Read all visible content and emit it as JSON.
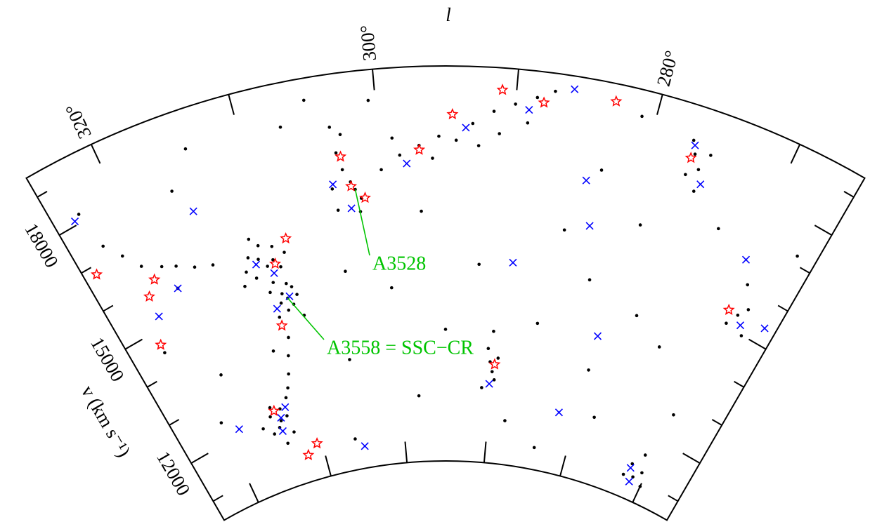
{
  "chart_data": {
    "type": "wedge",
    "xlabel": "l",
    "ylabel": "v (km s⁻¹)",
    "xlim": [
      325,
      265
    ],
    "ylim": [
      10500,
      19500
    ],
    "xticks": [
      {
        "value": 320,
        "label": "320°"
      },
      {
        "value": 300,
        "label": "300°"
      },
      {
        "value": 280,
        "label": "280°"
      }
    ],
    "xminor_ticks": [
      310,
      290,
      270
    ],
    "yticks": [
      12000,
      15000,
      18000
    ],
    "yminor_ticks": [
      11000,
      13000,
      14000,
      16000,
      17000,
      19000
    ],
    "annotations": [
      {
        "text": "A3528",
        "x": 302.2,
        "y": 16815
      },
      {
        "text": "A3558 = SSC−CR",
        "x": 309.6,
        "y": 14670
      }
    ],
    "series": [
      {
        "marker": "dot",
        "color": "#000000",
        "x": [
          309.6,
          309.2,
          310,
          309.8,
          310.3,
          309,
          310.8,
          308.7,
          309.4,
          310.5,
          311,
          308.5,
          310.6,
          311.2,
          310,
          311.8,
          312,
          309.5,
          310.9,
          311.5,
          309.8,
          312.5,
          313,
          308.9,
          310.5,
          311,
          311.5,
          312,
          312.3,
          313.8,
          313.5,
          314.2,
          313,
          314.5,
          315,
          312.8,
          313.9,
          314.8,
          316,
          312.5,
          302.2,
          302.5,
          301.8,
          303,
          303.3,
          302.8,
          303.5,
          304,
          303.8,
          302,
          300,
          298.5,
          297,
          295.5,
          294.2,
          293,
          291.5,
          290,
          288.5,
          287.3,
          289,
          291,
          296,
          299,
          292.5,
          317.9,
          316.5,
          315,
          319,
          320.5,
          318.5,
          321.5,
          322.5,
          290,
          290.3,
          289.7,
          290.6,
          289.5,
          291,
          290.2,
          276.6,
          277,
          276,
          276.8,
          275.5,
          275.8,
          271.3,
          272,
          270.5,
          271,
          272.5,
          270,
          268.6,
          268,
          269.2,
          267.5,
          269,
          285,
          282,
          280,
          278,
          286,
          283,
          279,
          274,
          292,
          295,
          298,
          300,
          305,
          306,
          304,
          297,
          288,
          284,
          318,
          320,
          322,
          323,
          316,
          314,
          307,
          305,
          300.5,
          281,
          277,
          273,
          266.5,
          270
        ],
        "y": [
          14670,
          14500,
          14800,
          14400,
          14600,
          14900,
          14300,
          14700,
          15000,
          15100,
          14900,
          14200,
          15490,
          15700,
          15600,
          15300,
          15800,
          15400,
          16000,
          16200,
          15900,
          15500,
          15200,
          15700,
          13800,
          13400,
          13000,
          12700,
          13600,
          12035,
          12300,
          11900,
          12100,
          12400,
          11800,
          11700,
          11500,
          12200,
          12000,
          12500,
          16815,
          17000,
          16600,
          17300,
          17700,
          18100,
          18300,
          16900,
          16400,
          16300,
          17200,
          17500,
          17700,
          17900,
          17810,
          18200,
          18500,
          18700,
          18900,
          19090,
          18300,
          18000,
          17400,
          17900,
          17700,
          16180,
          16000,
          15900,
          16300,
          16500,
          15700,
          16900,
          17300,
          12580,
          12800,
          12400,
          13100,
          12900,
          12200,
          13500,
          18410,
          18700,
          18100,
          17900,
          18500,
          17600,
          11030,
          11300,
          11200,
          11600,
          11000,
          10900,
          15380,
          15600,
          15100,
          15000,
          16100,
          16000,
          15000,
          13000,
          12000,
          13800,
          17500,
          16500,
          14000,
          15000,
          13500,
          12000,
          14500,
          13000,
          11200,
          15000,
          16200,
          11500,
          11000,
          13500,
          12500,
          14500,
          18200,
          17800,
          18600,
          18500,
          19000,
          18800,
          18900,
          14500,
          17000,
          17200,
          12700
        ]
      },
      {
        "marker": "cross",
        "color": "#0000ff",
        "x": [
          309.4,
          310.8,
          311.5,
          310.2,
          313.7,
          314,
          312.9,
          302.7,
          303.9,
          298,
          293.5,
          289,
          286,
          284,
          275.5,
          276.8,
          283,
          289,
          290.2,
          282,
          272,
          271.5,
          268,
          270,
          266,
          318.5,
          321,
          323.5,
          315,
          318.5,
          305,
          280
        ],
        "y": [
          14700,
          14500,
          15600,
          15300,
          12100,
          11800,
          12300,
          16400,
          17000,
          17300,
          18100,
          18600,
          19200,
          17200,
          17800,
          18600,
          16200,
          15100,
          12300,
          11900,
          11200,
          10900,
          15200,
          16600,
          15400,
          15700,
          15300,
          18100,
          17200,
          12200,
          11000,
          13800
        ]
      },
      {
        "marker": "star",
        "color": "#ff0000",
        "x": [
          309.9,
          308.5,
          310.8,
          303,
          302.5,
          301.5,
          297,
          294.5,
          291,
          288,
          283,
          276.8,
          269.5,
          289.8,
          314.2,
          310.6,
          312,
          320,
          321,
          324,
          322
        ],
        "y": [
          15500,
          16000,
          14100,
          17600,
          16900,
          16600,
          17600,
          18400,
          19000,
          18800,
          19100,
          18300,
          15400,
          12750,
          12300,
          11300,
          11100,
          16100,
          15800,
          16800,
          14700
        ]
      }
    ]
  }
}
